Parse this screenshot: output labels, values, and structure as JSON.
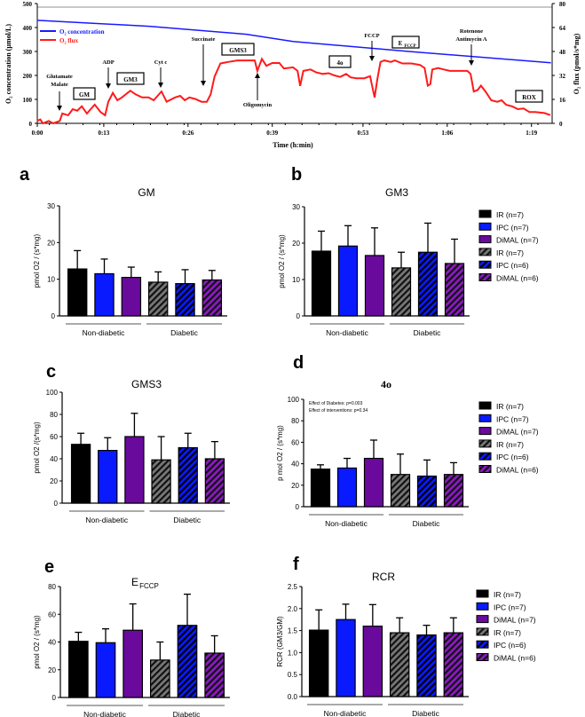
{
  "chart_data": [
    {
      "type": "line",
      "title": "",
      "xlabel": "Time (h:min)",
      "ylabel": "O₂ concentration (µmol/L)",
      "ylabel_right": "O₂ flux (pmol/s*mg)",
      "x_ticks": [
        {
          "label": "0:00",
          "min": 0
        },
        {
          "label": "0:13",
          "min": 13
        },
        {
          "label": "0:26",
          "min": 26
        },
        {
          "label": "0:39",
          "min": 39
        },
        {
          "label": "0:53",
          "min": 53
        },
        {
          "label": "1:06",
          "min": 66
        },
        {
          "label": "1:19",
          "min": 79
        }
      ],
      "ylim": [
        0,
        500
      ],
      "y_ticks": [
        "0",
        "100",
        "200",
        "300",
        "400",
        "500"
      ],
      "ylim_right": [
        0,
        80
      ],
      "y_ticks_right": [
        "0",
        "16",
        "32",
        "48",
        "64",
        "80"
      ],
      "legend": [
        {
          "label": "O₂ concentration",
          "color": "#1a1aff"
        },
        {
          "label": "O₂ flux",
          "color": "#ff1a1a"
        }
      ],
      "legend_position": "top-left",
      "series": [
        {
          "name": "O₂ concentration",
          "axis": "left",
          "unit": "µmol/L",
          "color": "#1a1aff",
          "x": [
            2.7,
            20,
            35,
            42.2,
            60.5,
            82
          ],
          "y": [
            430,
            405,
            372,
            342,
            299,
            253
          ]
        },
        {
          "name": "O₂ flux",
          "axis": "right",
          "unit": "pmol/s*mg",
          "color": "#ff1a1a",
          "x": [
            2.7,
            3.2,
            3.6,
            4.5,
            5.2,
            6.2,
            6.6,
            7.5,
            8.2,
            8.9,
            9.6,
            10.4,
            11.6,
            12.5,
            13.2,
            13.7,
            14.4,
            15.1,
            15.8,
            17.1,
            17.9,
            18.9,
            19.9,
            20.7,
            21.9,
            22.7,
            24,
            24.8,
            25.5,
            26.2,
            27.1,
            28.1,
            28.9,
            29.5,
            30.1,
            31,
            32.2,
            33.6,
            34.9,
            36.3,
            36.7,
            37.4,
            38.1,
            39,
            40.1,
            40.8,
            42.2,
            42.9,
            43.3,
            43.8,
            44.9,
            45.8,
            46.8,
            47.7,
            48.6,
            49.5,
            50.4,
            51.1,
            52,
            53.2,
            54.1,
            54.5,
            54.8,
            55.2,
            55.7,
            56.3,
            57.3,
            57.9,
            59.1,
            60.5,
            61.8,
            62.5,
            63,
            63.4,
            63.7,
            64.6,
            65.5,
            66.4,
            67.8,
            69.1,
            69.6,
            70.1,
            70.7,
            71.2,
            71.9,
            72.8,
            73.7,
            74.4,
            75.1,
            76,
            76.9,
            77.8,
            78.7,
            79.6,
            81,
            81.9
          ],
          "y": [
            1.6,
            2.6,
            0,
            1.6,
            0,
            1.6,
            6.6,
            5.4,
            9.4,
            8.5,
            11.4,
            6.6,
            12.5,
            7.5,
            5.4,
            14.4,
            20.3,
            15.4,
            17.3,
            21.8,
            19.4,
            17.3,
            17.3,
            15.4,
            21.3,
            14.4,
            17.3,
            18.4,
            15.4,
            17.3,
            16.3,
            14.4,
            14.4,
            19.4,
            31.2,
            40,
            41,
            42,
            42,
            42,
            35,
            43,
            38.4,
            40.3,
            40.3,
            36.6,
            37.4,
            35,
            25,
            35,
            36,
            34,
            33,
            33.5,
            32,
            31,
            33,
            30.7,
            30.1,
            30.1,
            31.5,
            23.3,
            17.3,
            29.2,
            41,
            42,
            41,
            42,
            40,
            40,
            39,
            37,
            25.2,
            26.2,
            36,
            37,
            36,
            35,
            35,
            35,
            33,
            21.3,
            22.3,
            25.2,
            21.3,
            15.4,
            14.4,
            15.4,
            12.4,
            11.4,
            9.5,
            9.9,
            7.5,
            7.5,
            6.9,
            5.5
          ]
        }
      ],
      "annotations": [
        {
          "id": "glutamate-malate",
          "lines": [
            "Glutamate",
            "Malate"
          ],
          "kind": "arrow-down"
        },
        {
          "id": "gm",
          "lines": [
            "GM"
          ],
          "kind": "box"
        },
        {
          "id": "adp",
          "lines": [
            "ADP"
          ],
          "kind": "arrow-down"
        },
        {
          "id": "gm3",
          "lines": [
            "GM3"
          ],
          "kind": "box"
        },
        {
          "id": "cyt-c",
          "lines": [
            "Cyt c"
          ],
          "kind": "arrow-down"
        },
        {
          "id": "succinate",
          "lines": [
            "Succinate"
          ],
          "kind": "arrow-down"
        },
        {
          "id": "gms3",
          "lines": [
            "GMS3"
          ],
          "kind": "box"
        },
        {
          "id": "oligomycin",
          "lines": [
            "Oligomycin"
          ],
          "kind": "arrow-up"
        },
        {
          "id": "4o",
          "lines": [
            "4o"
          ],
          "kind": "box"
        },
        {
          "id": "fccp",
          "lines": [
            "FCCP"
          ],
          "kind": "arrow-down"
        },
        {
          "id": "efccp",
          "lines": [
            "E"
          ],
          "sub": "FCCP",
          "kind": "box"
        },
        {
          "id": "rotenone",
          "lines": [
            "Rotenone",
            "Antimycin A"
          ],
          "kind": "arrow-down"
        },
        {
          "id": "rox",
          "lines": [
            "ROX"
          ],
          "kind": "box"
        }
      ]
    },
    {
      "type": "bar",
      "panel": "a",
      "title": "GM",
      "ylabel": "pmol O2 / (s*mg)",
      "ylim": [
        0,
        30
      ],
      "y_ticks": [
        "0",
        "10",
        "20",
        "30"
      ],
      "groups": [
        "Non-diabetic",
        "Diabetic"
      ],
      "series": [
        "IR",
        "IPC",
        "DiMAL",
        "IR",
        "IPC",
        "DiMAL"
      ],
      "values": [
        12.8,
        11.5,
        10.5,
        9.2,
        8.8,
        9.8
      ],
      "sd": [
        5.0,
        4.0,
        2.8,
        2.8,
        3.8,
        2.6
      ]
    },
    {
      "type": "bar",
      "panel": "b",
      "title": "GM3",
      "ylabel": "pmol O2 / (s*mg)",
      "ylim": [
        0,
        30
      ],
      "y_ticks": [
        "0",
        "10",
        "20",
        "30"
      ],
      "groups": [
        "Non-diabetic",
        "Diabetic"
      ],
      "values": [
        17.8,
        19.2,
        16.6,
        13.2,
        17.5,
        14.4
      ],
      "sd": [
        5.5,
        5.6,
        7.6,
        4.3,
        8.0,
        6.7
      ],
      "legend": [
        "IR (n=7)",
        "IPC (n=7)",
        "DiMAL (n=7)",
        "IR (n=7)",
        "IPC (n=6)",
        "DiMAL (n=6)"
      ],
      "legend_position": "right"
    },
    {
      "type": "bar",
      "panel": "c",
      "title": "GMS3",
      "ylabel": "pmol O2 /(s*mg)",
      "ylim": [
        0,
        100
      ],
      "y_ticks": [
        "0",
        "20",
        "40",
        "60",
        "80",
        "100"
      ],
      "groups": [
        "Non-diabetic",
        "Diabetic"
      ],
      "values": [
        53,
        47.5,
        60,
        39,
        50,
        40
      ],
      "sd": [
        10,
        11.5,
        21,
        21,
        13,
        15.5
      ]
    },
    {
      "type": "bar",
      "panel": "d",
      "title": "4o",
      "ylabel": "p mol O2 / (s*mg)",
      "ylim": [
        0,
        100
      ],
      "y_ticks": [
        "0",
        "20",
        "40",
        "60",
        "80",
        "100"
      ],
      "groups": [
        "Non-diabetic",
        "Diabetic"
      ],
      "values": [
        35,
        36,
        45,
        30,
        28.5,
        30
      ],
      "sd": [
        4,
        9,
        17,
        19,
        15,
        11
      ],
      "annotations": [
        "Effect of Diabetes: p=0.003",
        "Effect of interventions: p=0.34"
      ],
      "legend": [
        "IR (n=7)",
        "IPC (n=7)",
        "DiMAL (n=7)",
        "IR (n=7)",
        "IPC (n=6)",
        "DiMAL (n=6)"
      ],
      "legend_position": "right"
    },
    {
      "type": "bar",
      "panel": "e",
      "title": "E",
      "title_sub": "FCCP",
      "ylabel": "pmol O2 / (s*mg)",
      "ylim": [
        0,
        80
      ],
      "y_ticks": [
        "0",
        "20",
        "40",
        "60",
        "80"
      ],
      "groups": [
        "Non-diabetic",
        "Diabetic"
      ],
      "values": [
        40.5,
        39.5,
        48.5,
        27,
        52,
        32
      ],
      "sd": [
        6.5,
        10,
        19,
        13,
        22.5,
        12.5
      ]
    },
    {
      "type": "bar",
      "panel": "f",
      "title": "RCR",
      "ylabel": "RCR (GM3/GM)",
      "ylim": [
        0,
        2.5
      ],
      "y_ticks": [
        "0.0",
        "0.5",
        "1.0",
        "1.5",
        "2.0",
        "2.5"
      ],
      "groups": [
        "Non-diabetic",
        "Diabetic"
      ],
      "values": [
        1.51,
        1.75,
        1.6,
        1.45,
        1.4,
        1.45
      ],
      "sd": [
        0.46,
        0.35,
        0.49,
        0.34,
        0.22,
        0.34
      ],
      "legend": [
        "IR (n=7)",
        "IPC (n=7)",
        "DiMAL (n=7)",
        "IR (n=7)",
        "IPC (n=6)",
        "DiMAL (n=6)"
      ],
      "legend_position": "right"
    }
  ],
  "bar_colors": [
    "#000000",
    "#0a1aff",
    "#6a0a9c"
  ],
  "hatched": [
    false,
    false,
    false,
    true,
    true,
    true
  ]
}
